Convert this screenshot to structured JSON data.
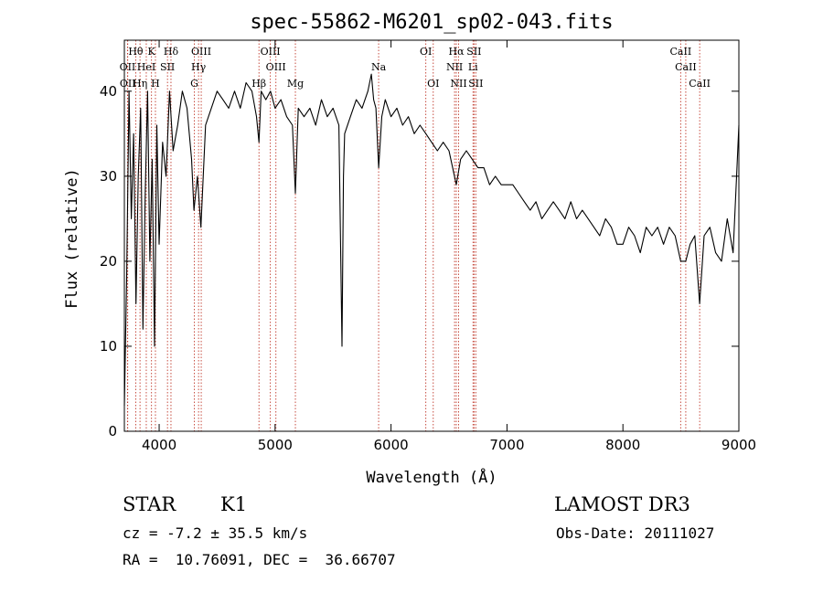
{
  "chart_data": {
    "type": "line",
    "title": "spec-55862-M6201_sp02-043.fits",
    "xlabel": "Wavelength (Å)",
    "ylabel": "Flux (relative)",
    "xlim": [
      3700,
      9000
    ],
    "ylim": [
      0,
      46
    ],
    "xticks": [
      4000,
      5000,
      6000,
      7000,
      8000,
      9000
    ],
    "yticks": [
      0,
      10,
      20,
      30,
      40
    ],
    "series": [
      {
        "name": "flux",
        "x": [
          3700,
          3720,
          3740,
          3760,
          3780,
          3800,
          3820,
          3840,
          3860,
          3880,
          3900,
          3920,
          3940,
          3960,
          3980,
          4000,
          4030,
          4060,
          4090,
          4120,
          4160,
          4200,
          4240,
          4280,
          4300,
          4330,
          4360,
          4400,
          4450,
          4500,
          4550,
          4600,
          4650,
          4700,
          4750,
          4800,
          4840,
          4861,
          4880,
          4920,
          4960,
          5000,
          5050,
          5100,
          5150,
          5175,
          5200,
          5250,
          5300,
          5350,
          5400,
          5450,
          5500,
          5550,
          5577,
          5590,
          5600,
          5650,
          5700,
          5750,
          5800,
          5830,
          5850,
          5870,
          5893,
          5920,
          5950,
          6000,
          6050,
          6100,
          6150,
          6200,
          6250,
          6300,
          6350,
          6400,
          6450,
          6500,
          6563,
          6600,
          6650,
          6700,
          6750,
          6800,
          6850,
          6900,
          6950,
          7000,
          7050,
          7100,
          7150,
          7200,
          7250,
          7300,
          7350,
          7400,
          7450,
          7500,
          7550,
          7600,
          7650,
          7700,
          7750,
          7800,
          7850,
          7900,
          7950,
          8000,
          8050,
          8100,
          8150,
          8200,
          8250,
          8300,
          8350,
          8400,
          8450,
          8498,
          8542,
          8580,
          8620,
          8662,
          8700,
          8750,
          8800,
          8850,
          8900,
          8950,
          8980,
          9000
        ],
        "y": [
          3,
          18,
          40,
          25,
          35,
          15,
          30,
          38,
          12,
          28,
          40,
          20,
          32,
          10,
          36,
          22,
          34,
          30,
          40,
          33,
          36,
          40,
          38,
          32,
          26,
          30,
          24,
          36,
          38,
          40,
          39,
          38,
          40,
          38,
          41,
          40,
          37,
          34,
          40,
          39,
          40,
          38,
          39,
          37,
          36,
          28,
          38,
          37,
          38,
          36,
          39,
          37,
          38,
          36,
          10,
          30,
          35,
          37,
          39,
          38,
          40,
          42,
          39,
          38,
          31,
          37,
          39,
          37,
          38,
          36,
          37,
          35,
          36,
          35,
          34,
          33,
          34,
          33,
          29,
          32,
          33,
          32,
          31,
          31,
          29,
          30,
          29,
          29,
          29,
          28,
          27,
          26,
          27,
          25,
          26,
          27,
          26,
          25,
          27,
          25,
          26,
          25,
          24,
          23,
          25,
          24,
          22,
          22,
          24,
          23,
          21,
          24,
          23,
          24,
          22,
          24,
          23,
          20,
          20,
          22,
          23,
          15,
          23,
          24,
          21,
          20,
          25,
          21,
          30,
          36
        ]
      }
    ],
    "spectral_lines": [
      {
        "label": "Hθ",
        "wavelength": 3798,
        "row": 0
      },
      {
        "label": "K",
        "wavelength": 3934,
        "row": 0
      },
      {
        "label": "Hδ",
        "wavelength": 4102,
        "row": 0
      },
      {
        "label": "OIII",
        "wavelength": 4363,
        "row": 0
      },
      {
        "label": "OIII",
        "wavelength": 4959,
        "row": 0
      },
      {
        "label": "OI",
        "wavelength": 6300,
        "row": 0
      },
      {
        "label": "Hα",
        "wavelength": 6563,
        "row": 0
      },
      {
        "label": "SII",
        "wavelength": 6716,
        "row": 0
      },
      {
        "label": "CaII",
        "wavelength": 8498,
        "row": 0
      },
      {
        "label": "OII",
        "wavelength": 3727,
        "row": 1
      },
      {
        "label": "HeI",
        "wavelength": 3889,
        "row": 1
      },
      {
        "label": "SII",
        "wavelength": 4072,
        "row": 1
      },
      {
        "label": "Hγ",
        "wavelength": 4340,
        "row": 1
      },
      {
        "label": "OIII",
        "wavelength": 5007,
        "row": 1
      },
      {
        "label": "Na",
        "wavelength": 5893,
        "row": 1
      },
      {
        "label": "NII",
        "wavelength": 6548,
        "row": 1
      },
      {
        "label": "Li",
        "wavelength": 6707,
        "row": 1
      },
      {
        "label": "CaII",
        "wavelength": 8542,
        "row": 1
      },
      {
        "label": "OII",
        "wavelength": 3729,
        "row": 2
      },
      {
        "label": "Hη",
        "wavelength": 3835,
        "row": 2
      },
      {
        "label": "H",
        "wavelength": 3968,
        "row": 2
      },
      {
        "label": "G",
        "wavelength": 4304,
        "row": 2
      },
      {
        "label": "Hβ",
        "wavelength": 4861,
        "row": 2
      },
      {
        "label": "Mg",
        "wavelength": 5175,
        "row": 2
      },
      {
        "label": "OI",
        "wavelength": 6364,
        "row": 2
      },
      {
        "label": "NII",
        "wavelength": 6583,
        "row": 2
      },
      {
        "label": "SII",
        "wavelength": 6731,
        "row": 2
      },
      {
        "label": "CaII",
        "wavelength": 8662,
        "row": 2
      }
    ],
    "colors": {
      "line": "#000000",
      "marker": "#c0392b",
      "axis": "#000000"
    }
  },
  "info": {
    "class": "STAR",
    "subclass": "K1",
    "survey": "LAMOST DR3",
    "redshift": "cz = -7.2 ± 35.5 km/s",
    "obs_date": "Obs-Date: 20111027",
    "coords": "RA =  10.76091, DEC =  36.66707"
  }
}
